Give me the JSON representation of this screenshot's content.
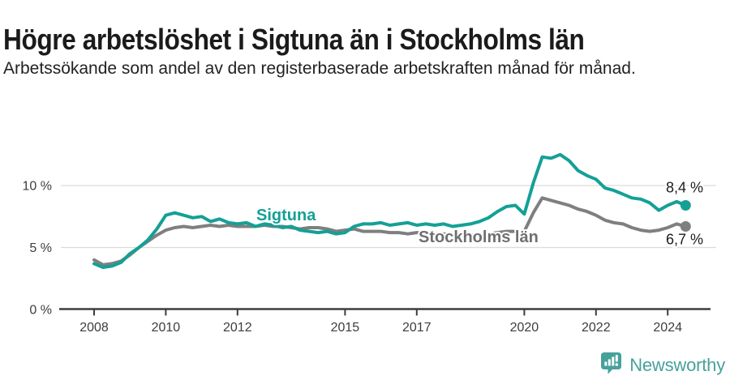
{
  "title": "Högre arbetslöshet i Sigtuna än i Stockholms län",
  "subtitle": "Arbetssökande som andel av den registerbaserade arbetskraften månad för månad.",
  "chart_data": {
    "type": "line",
    "title": "Högre arbetslöshet i Sigtuna än i Stockholms län",
    "subtitle": "Arbetssökande som andel av den registerbaserade arbetskraften månad för månad.",
    "unit": "%",
    "x_start": 2008,
    "x_step_years": 0.25,
    "x_end": 2024.5,
    "ylim": [
      0,
      13
    ],
    "grid": "horizontal",
    "gridline_values": [
      5,
      10
    ],
    "gridline_color": "#dcdcdc",
    "axis_color": "#3d3d3d",
    "x_ticks": [
      {
        "value": 2008,
        "label": "2008"
      },
      {
        "value": 2010,
        "label": "2010"
      },
      {
        "value": 2012,
        "label": "2012"
      },
      {
        "value": 2015,
        "label": "2015"
      },
      {
        "value": 2017,
        "label": "2017"
      },
      {
        "value": 2020,
        "label": "2020"
      },
      {
        "value": 2022,
        "label": "2022"
      },
      {
        "value": 2024,
        "label": "2024"
      }
    ],
    "y_ticks": [
      {
        "value": 0,
        "label": "0 %"
      },
      {
        "value": 5,
        "label": "5 %"
      },
      {
        "value": 10,
        "label": "10 %"
      }
    ],
    "series": [
      {
        "name": "Sigtuna",
        "color": "#14a096",
        "end_label": "8,4 %",
        "values": [
          3.7,
          3.4,
          3.5,
          3.8,
          4.5,
          5.0,
          5.6,
          6.5,
          7.6,
          7.8,
          7.6,
          7.4,
          7.5,
          7.1,
          7.3,
          7.0,
          6.9,
          7.0,
          6.7,
          6.9,
          6.8,
          6.6,
          6.7,
          6.4,
          6.3,
          6.2,
          6.3,
          6.1,
          6.2,
          6.7,
          6.9,
          6.9,
          7.0,
          6.8,
          6.9,
          7.0,
          6.8,
          6.9,
          6.8,
          6.9,
          6.7,
          6.8,
          6.9,
          7.1,
          7.4,
          7.9,
          8.3,
          8.4,
          7.7,
          10.2,
          12.3,
          12.2,
          12.5,
          12.0,
          11.2,
          10.8,
          10.5,
          9.8,
          9.6,
          9.3,
          9.0,
          8.9,
          8.6,
          8.0,
          8.4,
          8.7,
          8.4
        ]
      },
      {
        "name": "Stockholms län",
        "color": "#7f7f7f",
        "end_label": "6,7 %",
        "values": [
          4.0,
          3.6,
          3.7,
          3.9,
          4.4,
          5.0,
          5.5,
          6.0,
          6.4,
          6.6,
          6.7,
          6.6,
          6.7,
          6.8,
          6.7,
          6.8,
          6.7,
          6.7,
          6.7,
          6.8,
          6.7,
          6.7,
          6.6,
          6.5,
          6.6,
          6.6,
          6.5,
          6.3,
          6.4,
          6.5,
          6.3,
          6.3,
          6.3,
          6.2,
          6.2,
          6.1,
          6.2,
          6.2,
          6.1,
          6.1,
          6.0,
          6.0,
          6.0,
          6.0,
          6.1,
          6.2,
          6.3,
          6.3,
          6.3,
          7.8,
          9.0,
          8.8,
          8.6,
          8.4,
          8.1,
          7.9,
          7.6,
          7.2,
          7.0,
          6.9,
          6.6,
          6.4,
          6.3,
          6.4,
          6.6,
          6.9,
          6.7
        ]
      }
    ]
  },
  "footer": {
    "brand": "Newsworthy",
    "brand_icon": "bar-chart-badge-icon",
    "brand_color": "#47a19b"
  }
}
